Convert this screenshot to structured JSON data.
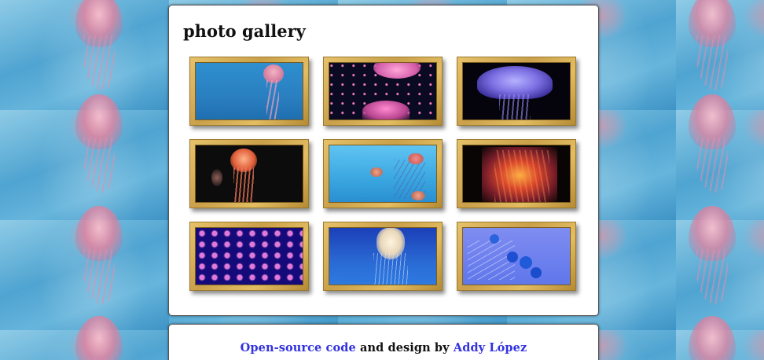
{
  "gallery": {
    "title": "photo gallery",
    "photos": [
      {
        "subject": "pink jellyfish in blue water"
      },
      {
        "subject": "pink jellyfish on dark background"
      },
      {
        "subject": "purple glowing jellyfish"
      },
      {
        "subject": "orange jellyfish on dark background"
      },
      {
        "subject": "small jellyfish in light blue water"
      },
      {
        "subject": "red-orange jellyfish on black"
      },
      {
        "subject": "swarm of pink jellyfish in deep blue"
      },
      {
        "subject": "white jellyfish in deep blue"
      },
      {
        "subject": "blue jellyfish on periwinkle"
      }
    ]
  },
  "footer": {
    "code_link": "Open-source code",
    "middle_text": " and design by ",
    "author_link": "Addy López"
  },
  "colors": {
    "link": "#3232e0",
    "frame_gold": "#caa04a",
    "panel": "#ffffff"
  }
}
